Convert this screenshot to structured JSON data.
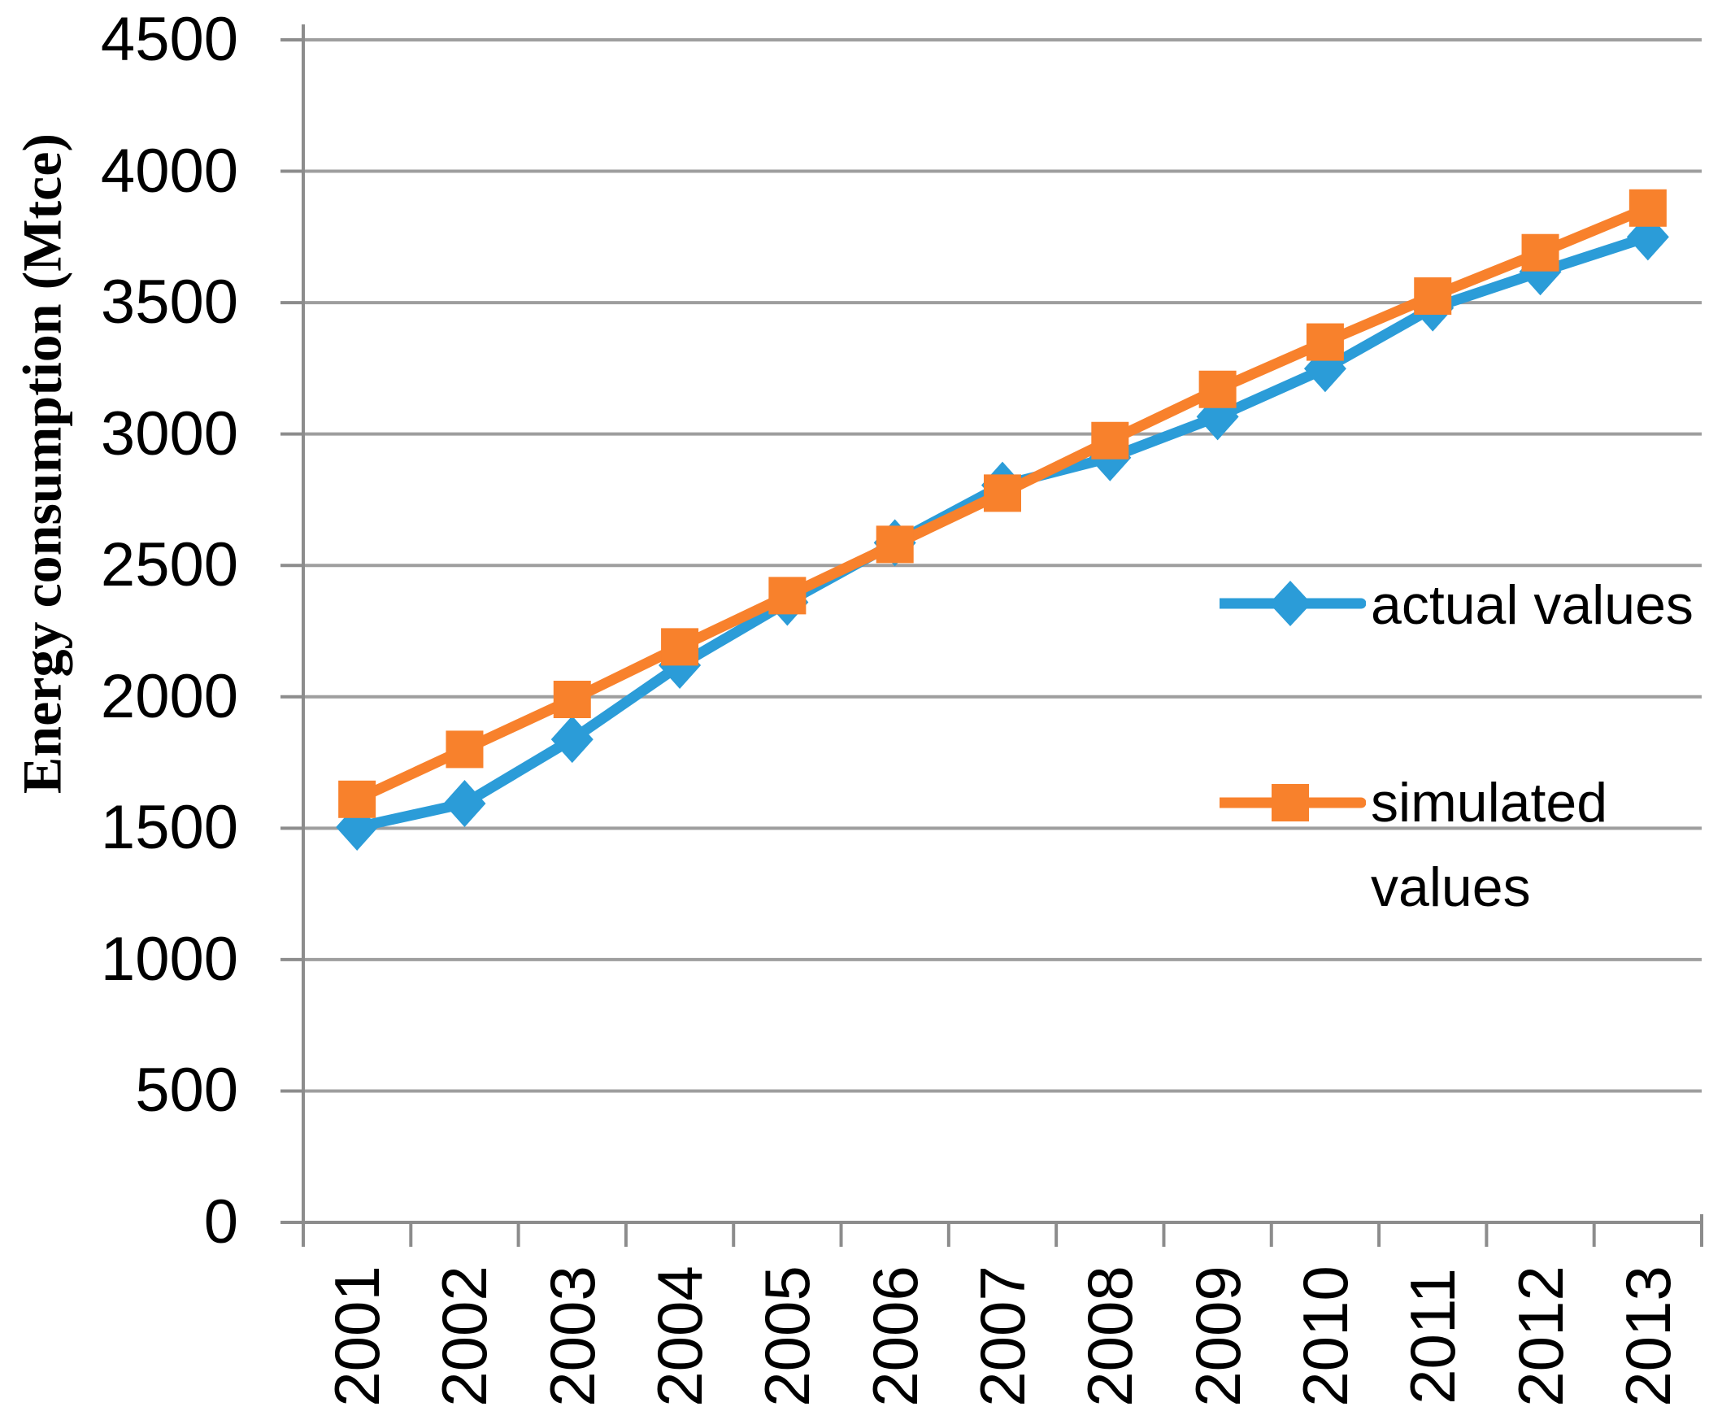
{
  "chart_data": {
    "type": "line",
    "title": "",
    "ylabel": "Energy consumption (Mtce)",
    "xlabel": "",
    "x_categories": [
      "2001",
      "2002",
      "2003",
      "2004",
      "2005",
      "2006",
      "2007",
      "2008",
      "2009",
      "2010",
      "2011",
      "2012",
      "2013"
    ],
    "y_tick_labels": [
      "0",
      "500",
      "1000",
      "1500",
      "2000",
      "2500",
      "3000",
      "3500",
      "4000",
      "4500"
    ],
    "ylim": [
      0,
      4500
    ],
    "ytick_step": 500,
    "grid": true,
    "legend_position": "center-right",
    "series": [
      {
        "name": "actual values",
        "marker": "diamond",
        "color": "#2B9CD8",
        "values": [
          1504,
          1594,
          1838,
          2120,
          2360,
          2586,
          2805,
          2910,
          3066,
          3249,
          3480,
          3617,
          3750
        ]
      },
      {
        "name": "simulated values",
        "marker": "square",
        "color": "#F8812C",
        "values": [
          1610,
          1800,
          1990,
          2190,
          2385,
          2580,
          2775,
          2975,
          3170,
          3350,
          3525,
          3690,
          3860
        ]
      }
    ],
    "colors": {
      "gridline": "#9E9E9E",
      "axis": "#8C8C8C",
      "text": "#000000",
      "background": "#FFFFFF"
    }
  }
}
